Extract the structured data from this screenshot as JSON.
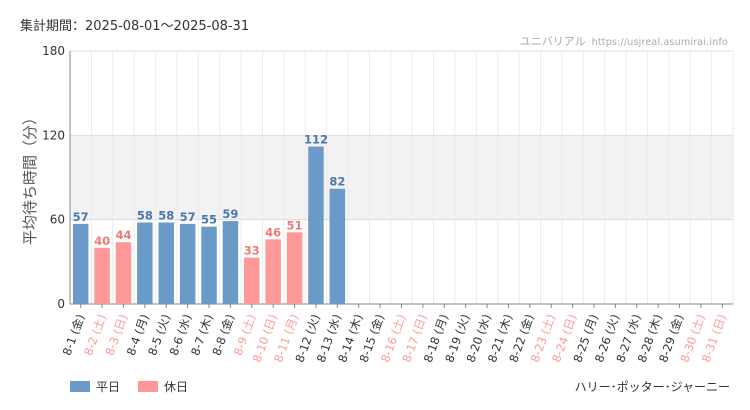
{
  "header": {
    "period": "集計期間：2025-08-01〜2025-08-31",
    "site_name": "ユニバリアル",
    "site_url": "https://usjreal.asumirai.info"
  },
  "footer": {
    "attraction": "ハリー･ポッター･ジャーニー"
  },
  "colors": {
    "weekday": "#6b9ac9",
    "holiday": "#ff9999",
    "weekday_label": "#4a78ad",
    "holiday_label": "#f07878"
  },
  "chart_data": {
    "type": "bar",
    "title": "",
    "ylabel": "平均待ち時間（分）",
    "xlabel": "",
    "ylim": [
      0,
      180
    ],
    "yticks": [
      0,
      60,
      120,
      180
    ],
    "grid": true,
    "legend_position": "bottom-left",
    "legend": [
      {
        "name": "平日",
        "kind": "weekday"
      },
      {
        "name": "休日",
        "kind": "holiday"
      }
    ],
    "categories": [
      "8-1 (金)",
      "8-2 (土)",
      "8-3 (日)",
      "8-4 (月)",
      "8-5 (火)",
      "8-6 (水)",
      "8-7 (木)",
      "8-8 (金)",
      "8-9 (土)",
      "8-10 (日)",
      "8-11 (月)",
      "8-12 (火)",
      "8-13 (水)",
      "8-14 (木)",
      "8-15 (金)",
      "8-16 (土)",
      "8-17 (日)",
      "8-18 (月)",
      "8-19 (火)",
      "8-20 (水)",
      "8-21 (木)",
      "8-22 (金)",
      "8-23 (土)",
      "8-24 (日)",
      "8-25 (月)",
      "8-26 (火)",
      "8-27 (水)",
      "8-28 (木)",
      "8-29 (金)",
      "8-30 (土)",
      "8-31 (日)"
    ],
    "day_kind": [
      "weekday",
      "holiday",
      "holiday",
      "weekday",
      "weekday",
      "weekday",
      "weekday",
      "weekday",
      "holiday",
      "holiday",
      "holiday",
      "weekday",
      "weekday",
      "weekday",
      "weekday",
      "holiday",
      "holiday",
      "weekday",
      "weekday",
      "weekday",
      "weekday",
      "weekday",
      "holiday",
      "holiday",
      "weekday",
      "weekday",
      "weekday",
      "weekday",
      "weekday",
      "holiday",
      "holiday"
    ],
    "values": [
      57,
      40,
      44,
      58,
      58,
      57,
      55,
      59,
      33,
      46,
      51,
      112,
      82,
      null,
      null,
      null,
      null,
      null,
      null,
      null,
      null,
      null,
      null,
      null,
      null,
      null,
      null,
      null,
      null,
      null,
      null
    ]
  }
}
